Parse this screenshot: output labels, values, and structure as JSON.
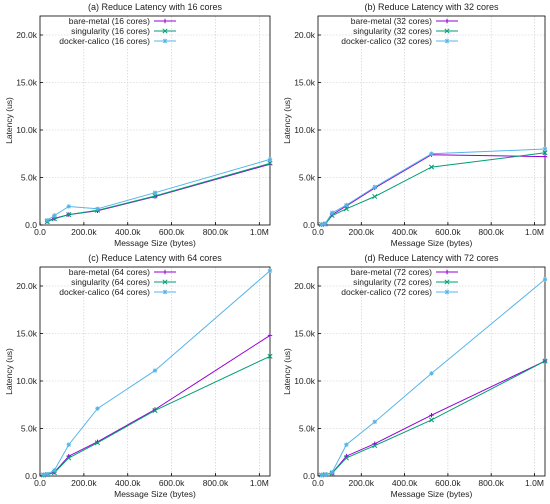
{
  "chart_data": [
    {
      "type": "line",
      "title": "(a) Reduce Latency with 16 cores",
      "xlabel": "Message Size (bytes)",
      "ylabel": "Latency (us)",
      "xlim": [
        0,
        1048576
      ],
      "ylim": [
        0,
        22000
      ],
      "xticks": [
        0,
        200000,
        400000,
        600000,
        800000,
        1000000
      ],
      "xtick_labels": [
        "0.0",
        "200.0k",
        "400.0k",
        "600.0k",
        "800.0k",
        "1.0M"
      ],
      "yticks": [
        0,
        5000,
        10000,
        15000,
        20000
      ],
      "ytick_labels": [
        "0.0",
        "5.0k",
        "10.0k",
        "15.0k",
        "20.0k"
      ],
      "grid": true,
      "legend": "top-left",
      "x": [
        32768,
        65536,
        131072,
        262144,
        524288,
        1048576
      ],
      "series": [
        {
          "name": "bare-metal (16 cores)",
          "color": "#9400d3",
          "values": [
            400,
            700,
            1100,
            1500,
            3000,
            6400
          ]
        },
        {
          "name": "singularity (16 cores)",
          "color": "#009e73",
          "values": [
            350,
            650,
            1100,
            1550,
            3050,
            6500
          ]
        },
        {
          "name": "docker-calico (16 cores)",
          "color": "#56b4e9",
          "values": [
            500,
            1000,
            1950,
            1700,
            3400,
            6900
          ]
        }
      ]
    },
    {
      "type": "line",
      "title": "(b) Reduce Latency with 32 cores",
      "xlabel": "Message Size (bytes)",
      "ylabel": "Latency (us)",
      "xlim": [
        0,
        1048576
      ],
      "ylim": [
        0,
        22000
      ],
      "xticks": [
        0,
        200000,
        400000,
        600000,
        800000,
        1000000
      ],
      "xtick_labels": [
        "0.0",
        "200.0k",
        "400.0k",
        "600.0k",
        "800.0k",
        "1.0M"
      ],
      "yticks": [
        0,
        5000,
        10000,
        15000,
        20000
      ],
      "ytick_labels": [
        "0.0",
        "5.0k",
        "10.0k",
        "15.0k",
        "20.0k"
      ],
      "grid": true,
      "legend": "top-right",
      "x": [
        16384,
        32768,
        65536,
        131072,
        262144,
        524288,
        1048576
      ],
      "series": [
        {
          "name": "bare-metal (32 cores)",
          "color": "#9400d3",
          "values": [
            50,
            100,
            1100,
            2000,
            3900,
            7400,
            7200
          ]
        },
        {
          "name": "singularity (32 cores)",
          "color": "#009e73",
          "values": [
            50,
            100,
            1000,
            1700,
            3000,
            6100,
            7600
          ]
        },
        {
          "name": "docker-calico (32 cores)",
          "color": "#56b4e9",
          "values": [
            50,
            150,
            1300,
            2100,
            4000,
            7500,
            8000
          ]
        }
      ]
    },
    {
      "type": "line",
      "title": "(c) Reduce Latency with 64 cores",
      "xlabel": "Message Size (bytes)",
      "ylabel": "Latency (us)",
      "xlim": [
        0,
        1048576
      ],
      "ylim": [
        0,
        22000
      ],
      "xticks": [
        0,
        200000,
        400000,
        600000,
        800000,
        1000000
      ],
      "xtick_labels": [
        "0.0",
        "200.0k",
        "400.0k",
        "600.0k",
        "800.0k",
        "1.0M"
      ],
      "yticks": [
        0,
        5000,
        10000,
        15000,
        20000
      ],
      "ytick_labels": [
        "0.0",
        "5.0k",
        "10.0k",
        "15.0k",
        "20.0k"
      ],
      "grid": true,
      "legend": "top-left",
      "x": [
        16384,
        32768,
        65536,
        131072,
        262144,
        524288,
        1048576
      ],
      "series": [
        {
          "name": "bare-metal (64 cores)",
          "color": "#9400d3",
          "values": [
            100,
            150,
            400,
            2100,
            3600,
            7000,
            14800
          ]
        },
        {
          "name": "singularity (64 cores)",
          "color": "#009e73",
          "values": [
            100,
            150,
            350,
            1900,
            3500,
            6900,
            12600
          ]
        },
        {
          "name": "docker-calico (64 cores)",
          "color": "#56b4e9",
          "values": [
            150,
            200,
            600,
            3300,
            7100,
            11100,
            21600
          ]
        }
      ]
    },
    {
      "type": "line",
      "title": "(d) Reduce Latency with 72 cores",
      "xlabel": "Message Size (bytes)",
      "ylabel": "Latency (us)",
      "xlim": [
        0,
        1048576
      ],
      "ylim": [
        0,
        22000
      ],
      "xticks": [
        0,
        200000,
        400000,
        600000,
        800000,
        1000000
      ],
      "xtick_labels": [
        "0.0",
        "200.0k",
        "400.0k",
        "600.0k",
        "800.0k",
        "1.0M"
      ],
      "yticks": [
        0,
        5000,
        10000,
        15000,
        20000
      ],
      "ytick_labels": [
        "0.0",
        "5.0k",
        "10.0k",
        "15.0k",
        "20.0k"
      ],
      "grid": true,
      "legend": "top-left",
      "x": [
        16384,
        32768,
        65536,
        131072,
        262144,
        524288,
        1048576
      ],
      "series": [
        {
          "name": "bare-metal (72 cores)",
          "color": "#9400d3",
          "values": [
            100,
            150,
            300,
            2100,
            3400,
            6400,
            12100
          ]
        },
        {
          "name": "singularity (72 cores)",
          "color": "#009e73",
          "values": [
            100,
            150,
            300,
            1900,
            3200,
            5900,
            12100
          ]
        },
        {
          "name": "docker-calico (72 cores)",
          "color": "#56b4e9",
          "values": [
            100,
            150,
            400,
            3300,
            5700,
            10800,
            20700
          ]
        }
      ]
    }
  ]
}
